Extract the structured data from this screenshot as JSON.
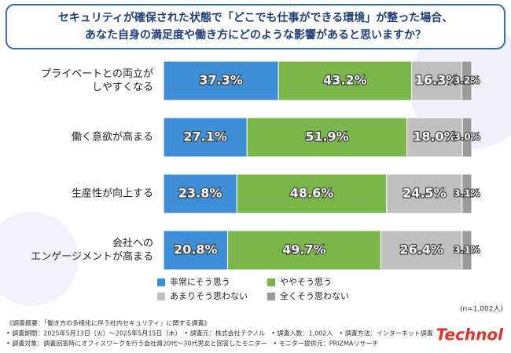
{
  "chart_data": {
    "type": "stacked-bar-horizontal",
    "title": [
      "セキュリティが確保された状態で「どこでも仕事ができる環境」が整った場合、",
      "あなた自身の満足度や働き方にどのような影響があると思いますか？"
    ],
    "categories": [
      [
        "プライベートとの両立が",
        "しやすくなる"
      ],
      [
        "働く意欲が高まる"
      ],
      [
        "生産性が向上する"
      ],
      [
        "会社への",
        "エンゲージメントが高まる"
      ]
    ],
    "series": [
      {
        "name": "非常にそう思う",
        "color": "#3f8fd8",
        "values": [
          37.3,
          27.1,
          23.8,
          20.8
        ],
        "value_labels": [
          "37.3%",
          "27.1%",
          "23.8%",
          "20.8%"
        ]
      },
      {
        "name": "ややそう思う",
        "color": "#79b74a",
        "values": [
          43.2,
          51.9,
          48.6,
          49.7
        ],
        "value_labels": [
          "43.2%",
          "51.9%",
          "48.6%",
          "49.7%"
        ]
      },
      {
        "name": "あまりそう思わない",
        "color": "#bfbfbf",
        "values": [
          16.3,
          18.0,
          24.5,
          26.4
        ],
        "value_labels": [
          "16.3%",
          "18.0%",
          "24.5%",
          "26.4%"
        ]
      },
      {
        "name": "全くそう思わない",
        "color": "#9a9a9a",
        "values": [
          3.2,
          3.0,
          3.1,
          3.1
        ],
        "value_labels": [
          "3.2%",
          "3.0%",
          "3.1%",
          "3.1%"
        ]
      }
    ],
    "xlim": [
      0,
      100
    ],
    "note": "(n=1,002人)"
  },
  "footer": [
    "《調査概要：「働き方の多様化に伴う社内セキュリティ」に関する調査》",
    "• 調査期間：2025年5月13日（火）～2025年5月15日（木）　• 調査元：株式会社テクノル　• 調査人数：1,002人　• 調査方法：インターネット調査",
    "• 調査対象：調査回答時にオフィスワークを行う会社員20代～30代男女と回答したモニター　• モニター提供元：PRIZMAリサーチ"
  ],
  "logo": "Technol"
}
